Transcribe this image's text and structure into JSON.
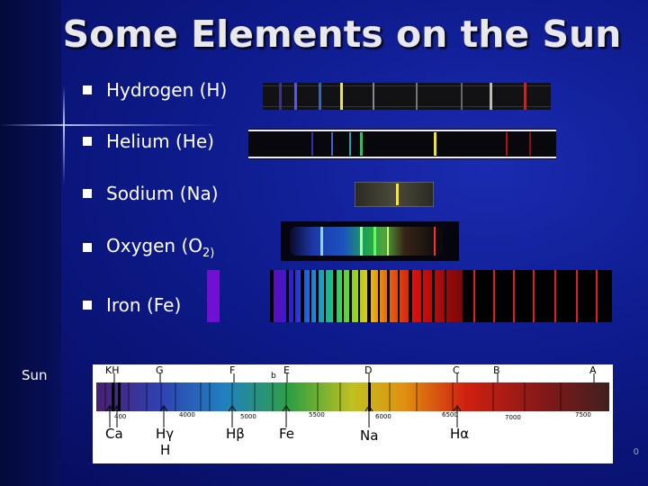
{
  "title": "Some Elements on the Sun",
  "bullets": [
    {
      "label": "Hydrogen (H)"
    },
    {
      "label": "Helium (He)"
    },
    {
      "label": "Sodium (Na)"
    },
    {
      "label": "Oxygen (O",
      "sub": "2)",
      "suffix": ""
    },
    {
      "label": "Iron (Fe)"
    }
  ],
  "sun_label": "Sun",
  "solar_top_letters": [
    "KH",
    "G",
    "F",
    "b",
    "E",
    "D",
    "C",
    "B",
    "A"
  ],
  "solar_scale_numbers": [
    "400",
    "4000",
    "5000",
    "5500",
    "6000",
    "6500",
    "7000",
    "7500"
  ],
  "solar_lines": [
    "Ca",
    "Hγ",
    "H",
    "Hβ",
    "Fe",
    "Na",
    "Hα"
  ],
  "page_number": "0",
  "colors": {
    "bg_dark": "#060c5a",
    "bg_light": "#1a2bb0",
    "text": "#ffffff"
  }
}
